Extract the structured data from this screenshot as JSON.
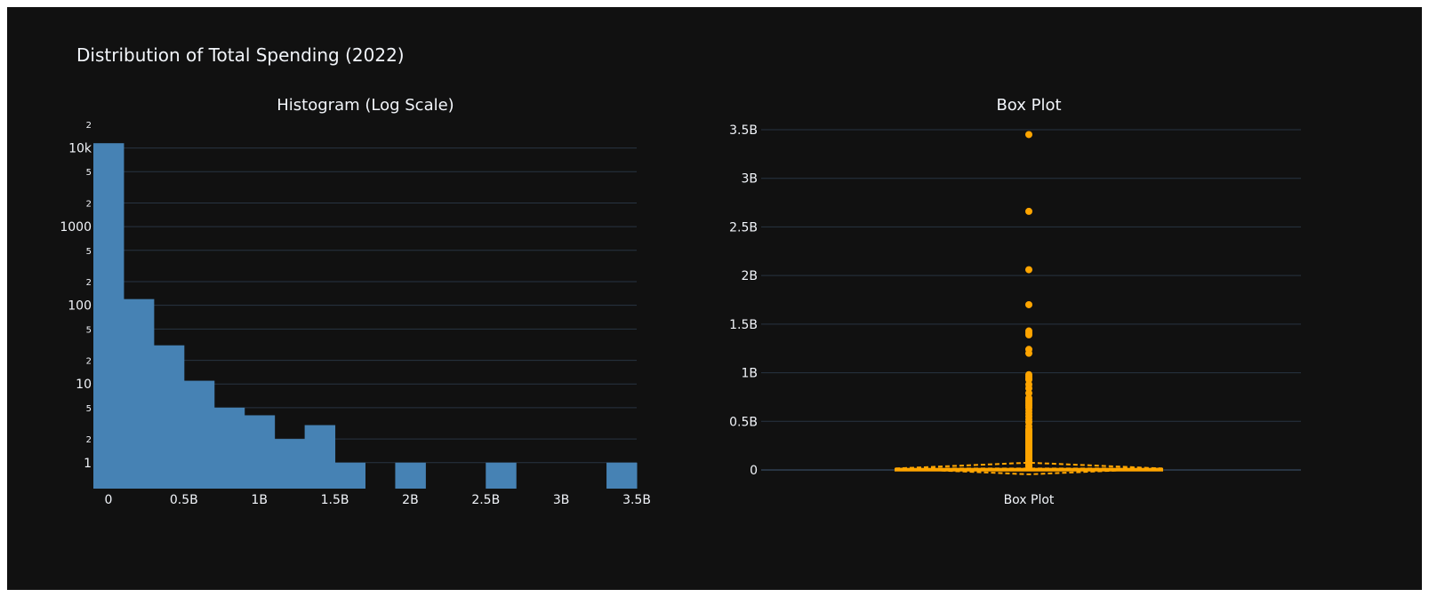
{
  "title": "Distribution of Total Spending (2022)",
  "colors": {
    "background": "#111111",
    "grid": "#283442",
    "text": "#f2f5fa",
    "histogram": "#4682b4",
    "box": "#ffa500"
  },
  "chart_data": [
    {
      "type": "bar",
      "subtitle": "Histogram (Log Scale)",
      "y_scale": "log",
      "xlim": [
        -0.1,
        3.5
      ],
      "x_ticks": [
        0,
        0.5,
        1,
        1.5,
        2,
        2.5,
        3,
        3.5
      ],
      "x_tick_labels": [
        "0",
        "0.5B",
        "1B",
        "1.5B",
        "2B",
        "2.5B",
        "3B",
        "3.5B"
      ],
      "y_tick_labels": {
        "major": [
          {
            "v": 1,
            "label": "1"
          },
          {
            "v": 10,
            "label": "10"
          },
          {
            "v": 100,
            "label": "100"
          },
          {
            "v": 1000,
            "label": "1000"
          },
          {
            "v": 10000,
            "label": "10k"
          }
        ],
        "minor": [
          {
            "v": 2,
            "label": "2"
          },
          {
            "v": 5,
            "label": "5"
          },
          {
            "v": 20,
            "label": "2"
          },
          {
            "v": 50,
            "label": "5"
          },
          {
            "v": 200,
            "label": "2"
          },
          {
            "v": 500,
            "label": "5"
          },
          {
            "v": 2000,
            "label": "2"
          },
          {
            "v": 5000,
            "label": "5"
          },
          {
            "v": 20000,
            "label": "2"
          }
        ]
      },
      "bin_width": 0.2,
      "bins": [
        {
          "x0": -0.1,
          "count": 11500
        },
        {
          "x0": 0.1,
          "count": 120
        },
        {
          "x0": 0.3,
          "count": 31
        },
        {
          "x0": 0.5,
          "count": 11
        },
        {
          "x0": 0.7,
          "count": 5
        },
        {
          "x0": 0.9,
          "count": 4
        },
        {
          "x0": 1.1,
          "count": 2
        },
        {
          "x0": 1.3,
          "count": 3
        },
        {
          "x0": 1.5,
          "count": 1
        },
        {
          "x0": 1.9,
          "count": 1
        },
        {
          "x0": 2.5,
          "count": 1
        },
        {
          "x0": 3.3,
          "count": 1
        }
      ]
    },
    {
      "type": "box",
      "subtitle": "Box Plot",
      "category": "Box Plot",
      "ylim": [
        -0.1,
        3.6
      ],
      "y_ticks": [
        0,
        0.5,
        1,
        1.5,
        2,
        2.5,
        3,
        3.5
      ],
      "y_tick_labels": [
        "0",
        "0.5B",
        "1B",
        "1.5B",
        "2B",
        "2.5B",
        "3B",
        "3.5B"
      ],
      "quartiles": {
        "min": 0,
        "q1": 0.002,
        "median": 0.005,
        "q3": 0.012,
        "upper_fence": 0.03
      },
      "mean": 0.015,
      "sd": 0.06,
      "outliers": [
        3.45,
        2.66,
        2.06,
        1.7,
        1.43,
        1.41,
        1.39,
        1.24,
        1.2,
        0.98,
        0.96,
        0.94,
        0.93,
        0.88,
        0.84,
        0.79,
        0.74,
        0.72,
        0.7,
        0.68,
        0.66,
        0.64,
        0.61,
        0.58,
        0.55,
        0.52,
        0.49,
        0.45,
        0.42,
        0.39,
        0.36,
        0.33,
        0.3,
        0.27,
        0.24,
        0.21,
        0.18,
        0.15,
        0.13,
        0.11,
        0.09,
        0.07,
        0.05,
        0.04
      ]
    }
  ]
}
